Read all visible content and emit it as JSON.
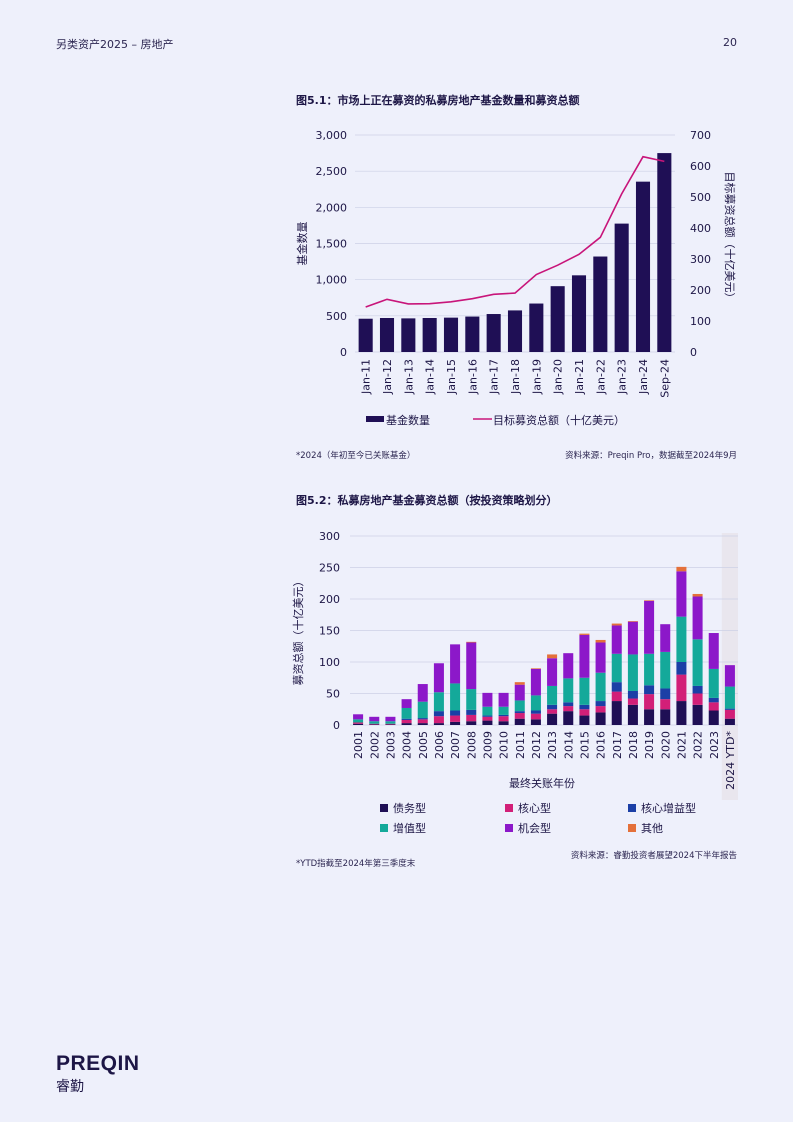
{
  "header": {
    "left": "另类资产2025 – 房地产",
    "page_number": "20"
  },
  "figure1": {
    "title": "图5.1：市场上正在募资的私募房地产基金数量和募资总额",
    "note": "*2024（年初至今已关账基金）",
    "source": "资料来源：Preqin Pro，数据截至2024年9月"
  },
  "figure2": {
    "title": "图5.2：私募房地产基金募资总额（按投资策略划分）",
    "note": "*YTD指截至2024年第三季度末",
    "source": "资料来源：睿勤投资者展望2024下半年报告"
  },
  "logo": {
    "en": "PREQIN",
    "cn": "睿勤"
  },
  "chart_data": [
    {
      "type": "bar",
      "title": "图5.1：市场上正在募资的私募房地产基金数量和募资总额",
      "categories": [
        "Jan-11",
        "Jan-12",
        "Jan-13",
        "Jan-14",
        "Jan-15",
        "Jan-16",
        "Jan-17",
        "Jan-18",
        "Jan-19",
        "Jan-20",
        "Jan-21",
        "Jan-22",
        "Jan-23",
        "Jan-24",
        "Sep-24"
      ],
      "ylabel": "基金数量",
      "y2label": "目标募资总额（十亿美元）",
      "ylim": [
        0,
        3000
      ],
      "y2lim": [
        0,
        700
      ],
      "yticks": [
        "0",
        "500",
        "1,000",
        "1,500",
        "2,000",
        "2,500",
        "3,000"
      ],
      "y2ticks": [
        "0",
        "100",
        "200",
        "300",
        "400",
        "500",
        "600",
        "700"
      ],
      "legend_position": "bottom",
      "series": [
        {
          "name": "基金数量",
          "kind": "bar",
          "axis": "left",
          "color": "#1f0f55",
          "values": [
            460,
            470,
            465,
            470,
            475,
            490,
            525,
            575,
            670,
            910,
            1060,
            1320,
            1775,
            2355,
            2750
          ]
        },
        {
          "name": "目标募资总额（十亿美元）",
          "kind": "line",
          "axis": "right",
          "color": "#c8157a",
          "values": [
            145,
            170,
            155,
            156,
            162,
            172,
            186,
            190,
            250,
            280,
            315,
            370,
            510,
            630,
            615
          ]
        }
      ]
    },
    {
      "type": "bar",
      "stacked": true,
      "title": "图5.2：私募房地产基金募资总额（按投资策略划分）",
      "categories": [
        "2001",
        "2002",
        "2003",
        "2004",
        "2005",
        "2006",
        "2007",
        "2008",
        "2009",
        "2010",
        "2011",
        "2012",
        "2013",
        "2014",
        "2015",
        "2016",
        "2017",
        "2018",
        "2019",
        "2020",
        "2021",
        "2022",
        "2023",
        "2024 YTD*"
      ],
      "xlabel": "最终关账年份",
      "ylabel": "募资总额（十亿美元）",
      "ylim": [
        0,
        300
      ],
      "yticks": [
        "0",
        "50",
        "100",
        "150",
        "200",
        "250",
        "300"
      ],
      "highlight_last_category": true,
      "legend_position": "bottom",
      "series": [
        {
          "name": "债务型",
          "color": "#1f0f55",
          "values": [
            2,
            1,
            1,
            3,
            3,
            3,
            5,
            6,
            7,
            6,
            10,
            9,
            18,
            22,
            15,
            20,
            38,
            32,
            25,
            25,
            38,
            32,
            23,
            10
          ]
        },
        {
          "name": "核心型",
          "color": "#d21f78",
          "values": [
            2,
            1,
            1,
            5,
            6,
            11,
            10,
            10,
            6,
            8,
            9,
            9,
            7,
            8,
            10,
            10,
            15,
            10,
            24,
            16,
            42,
            18,
            13,
            14
          ]
        },
        {
          "name": "核心增益型",
          "color": "#1b3fa6",
          "values": [
            0,
            0,
            0,
            2,
            2,
            8,
            8,
            8,
            2,
            2,
            3,
            5,
            7,
            6,
            7,
            8,
            15,
            12,
            14,
            17,
            20,
            12,
            7,
            2
          ]
        },
        {
          "name": "增值型",
          "color": "#14a99a",
          "values": [
            5,
            4,
            4,
            17,
            26,
            30,
            43,
            33,
            14,
            13,
            17,
            24,
            30,
            38,
            43,
            45,
            45,
            58,
            50,
            58,
            72,
            74,
            46,
            35
          ]
        },
        {
          "name": "机会型",
          "color": "#8c18c9",
          "values": [
            8,
            7,
            7,
            14,
            28,
            46,
            62,
            74,
            22,
            22,
            25,
            42,
            44,
            40,
            68,
            48,
            45,
            52,
            84,
            44,
            72,
            68,
            57,
            34
          ]
        },
        {
          "name": "其他",
          "color": "#e4703a",
          "values": [
            0,
            0,
            0,
            0,
            0,
            0,
            0,
            1,
            0,
            0,
            4,
            1,
            6,
            0,
            2,
            4,
            3,
            1,
            1,
            0,
            7,
            4,
            0,
            0
          ]
        }
      ]
    }
  ]
}
